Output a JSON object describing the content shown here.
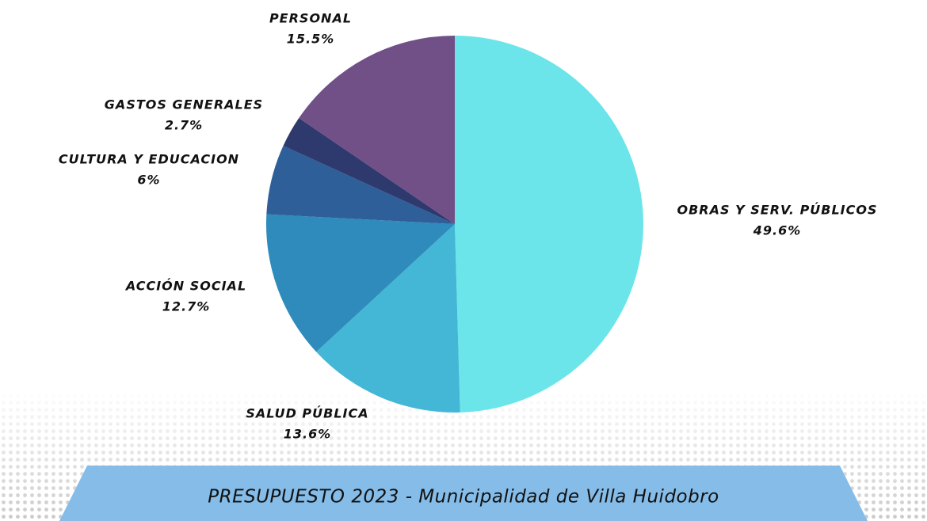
{
  "chart_data": {
    "type": "pie",
    "title": "PRESUPUESTO 2023 - Municipalidad de Villa Huidobro",
    "categories": [
      "OBRAS Y SERV. PÚBLICOS",
      "SALUD PÚBLICA",
      "ACCIÓN SOCIAL",
      "CULTURA Y EDUCACION",
      "GASTOS GENERALES",
      "PERSONAL"
    ],
    "values": [
      49.6,
      13.6,
      12.7,
      6,
      2.7,
      15.5
    ],
    "value_labels": [
      "49.6%",
      "13.6%",
      "12.7%",
      "6%",
      "2.7%",
      "15.5%"
    ],
    "colors": [
      "#6ce5ea",
      "#43b7d5",
      "#2e8bbb",
      "#2e5f98",
      "#2e3a6e",
      "#714f87"
    ]
  }
}
